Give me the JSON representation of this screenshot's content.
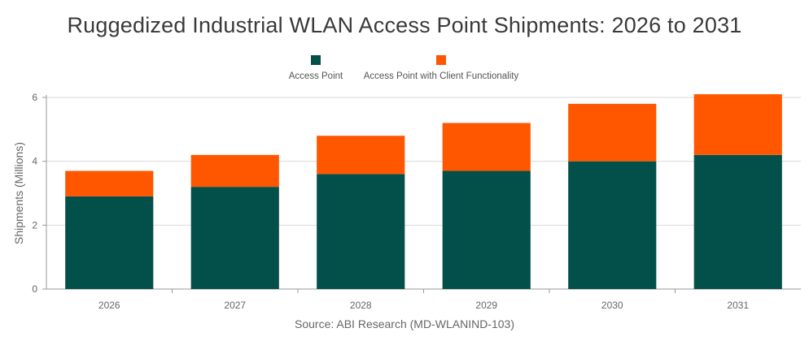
{
  "chart_data": {
    "type": "bar",
    "stacked": true,
    "title": "Ruggedized Industrial WLAN Access Point Shipments: 2026 to 2031",
    "ylabel": "Shipments (Millions)",
    "xlabel": "",
    "source": "Source: ABI Research (MD-WLANIND-103)",
    "categories": [
      "2026",
      "2027",
      "2028",
      "2029",
      "2030",
      "2031"
    ],
    "ylim": [
      0,
      6
    ],
    "yticks": [
      "0",
      "2",
      "4",
      "6"
    ],
    "grid": true,
    "legend": "top-center",
    "series": [
      {
        "name": "Access Point",
        "color": "#034f4a",
        "values": [
          2.9,
          3.2,
          3.6,
          3.7,
          4.0,
          4.2
        ]
      },
      {
        "name": "Access Point with Client Functionality",
        "color": "#fe5700",
        "values": [
          0.8,
          1.0,
          1.2,
          1.5,
          1.8,
          1.9
        ]
      }
    ]
  }
}
